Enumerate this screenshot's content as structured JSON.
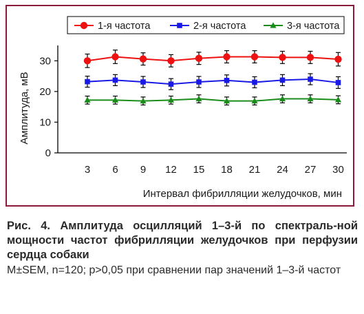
{
  "chart_data": {
    "type": "line",
    "x": [
      3,
      6,
      9,
      12,
      15,
      18,
      21,
      24,
      27,
      30
    ],
    "categories": [
      "3",
      "6",
      "9",
      "12",
      "15",
      "18",
      "21",
      "24",
      "27",
      "30"
    ],
    "series": [
      {
        "name": "1-я частота",
        "color": "#ee1111",
        "marker": "circle",
        "values": [
          30.0,
          31.3,
          30.6,
          30.0,
          30.8,
          31.3,
          31.3,
          31.1,
          31.1,
          30.5
        ],
        "errors": [
          2.2,
          2.2,
          2.0,
          2.0,
          2.0,
          2.0,
          2.0,
          2.0,
          2.0,
          2.2
        ]
      },
      {
        "name": "2-я частота",
        "color": "#1a1ae6",
        "marker": "square",
        "values": [
          23.2,
          23.7,
          23.1,
          22.4,
          23.1,
          23.6,
          23.0,
          23.7,
          24.0,
          22.9
        ],
        "errors": [
          1.8,
          1.8,
          1.8,
          1.8,
          1.8,
          1.8,
          1.8,
          1.8,
          1.8,
          1.9
        ]
      },
      {
        "name": "3-я частота",
        "color": "#1a8c1a",
        "marker": "triangle",
        "values": [
          17.2,
          17.2,
          16.9,
          17.2,
          17.6,
          16.9,
          16.9,
          17.6,
          17.6,
          17.3
        ],
        "errors": [
          1.3,
          1.3,
          1.3,
          1.3,
          1.3,
          1.3,
          1.3,
          1.3,
          1.3,
          1.3
        ]
      }
    ],
    "yticks": [
      0,
      10,
      20,
      30
    ],
    "ylim": [
      0,
      35
    ],
    "ylabel": "Амплитуда, мВ",
    "xlabel": "Интервал фибрилляции желудочков, мин",
    "legend": "top",
    "grid": false,
    "frame_color": "#8b1a3a"
  },
  "caption": {
    "title": "Рис. 4. Амплитуда осцилляций 1–3-й по спектраль-ной мощности частот фибрилляции желудочков при перфузии сердца собаки",
    "note": "M±SEM, n=120; p>0,05 при сравнении пар значений 1–3-й частот"
  }
}
